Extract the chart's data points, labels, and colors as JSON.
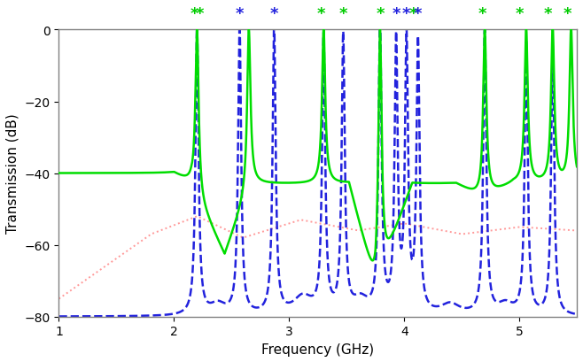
{
  "xlim": [
    1.0,
    5.5
  ],
  "ylim": [
    -80,
    0
  ],
  "xlabel": "Frequency (GHz)",
  "ylabel": "Transmission (dB)",
  "green_line_color": "#00dd00",
  "blue_line_color": "#2222dd",
  "red_line_color": "#ff9999",
  "yticks": [
    0,
    -20,
    -40,
    -60,
    -80
  ],
  "xticks": [
    1,
    2,
    3,
    4,
    5
  ],
  "green_star_freqs": [
    2.18,
    2.22,
    3.28,
    3.47,
    3.79,
    4.08,
    4.68,
    5.0,
    5.25,
    5.42
  ],
  "blue_star_freqs": [
    2.57,
    2.87,
    3.93,
    4.02,
    4.12
  ],
  "green_peaks": [
    2.2,
    2.65,
    3.3,
    3.79,
    4.7,
    5.06,
    5.29,
    5.45
  ],
  "blue_peaks": [
    2.2,
    2.57,
    2.87,
    3.3,
    3.47,
    3.79,
    3.93,
    4.02,
    4.12,
    4.7,
    5.06,
    5.29
  ]
}
